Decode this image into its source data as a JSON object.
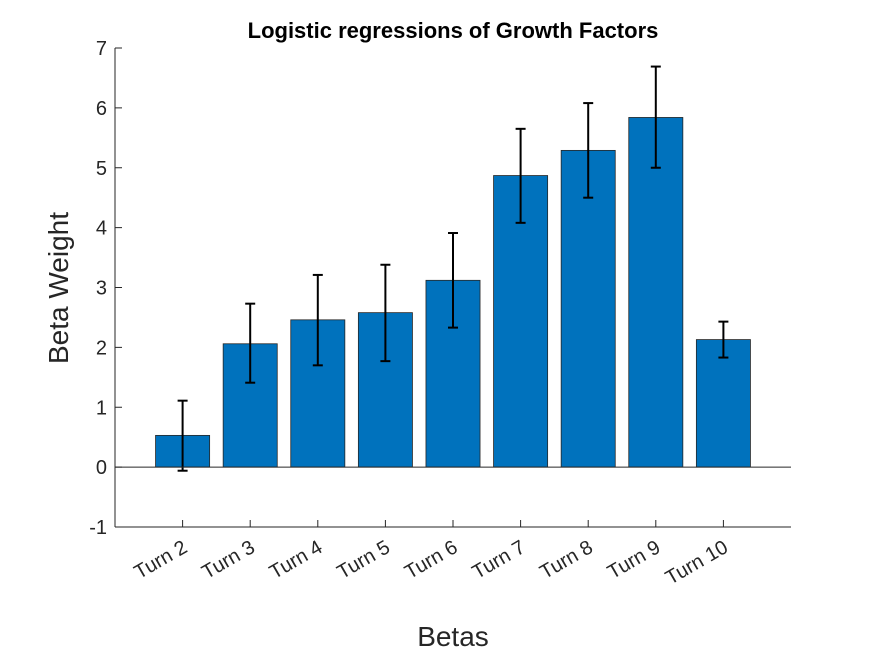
{
  "chart_data": {
    "type": "bar",
    "title": "Logistic regressions of Growth Factors",
    "xlabel": "Betas",
    "ylabel": "Beta Weight",
    "ylim": [
      -1,
      7
    ],
    "yticks": [
      -1,
      0,
      1,
      2,
      3,
      4,
      5,
      6,
      7
    ],
    "yticklabels": [
      "-1",
      "0",
      "1",
      "2",
      "3",
      "4",
      "5",
      "6",
      "7"
    ],
    "categories": [
      "Turn 2",
      "Turn 3",
      "Turn 4",
      "Turn 5",
      "Turn 6",
      "Turn 7",
      "Turn 8",
      "Turn 9",
      "Turn 10"
    ],
    "values": [
      0.53,
      2.06,
      2.46,
      2.58,
      3.12,
      4.87,
      5.29,
      5.84,
      2.13
    ],
    "error_upper": [
      1.11,
      2.73,
      3.21,
      3.38,
      3.91,
      5.65,
      6.08,
      6.69,
      2.43
    ],
    "error_lower": [
      -0.06,
      1.41,
      1.7,
      1.77,
      2.33,
      4.08,
      4.5,
      5.0,
      1.83
    ],
    "bar_color": "#0072BD",
    "grid": false,
    "legend": "none"
  }
}
